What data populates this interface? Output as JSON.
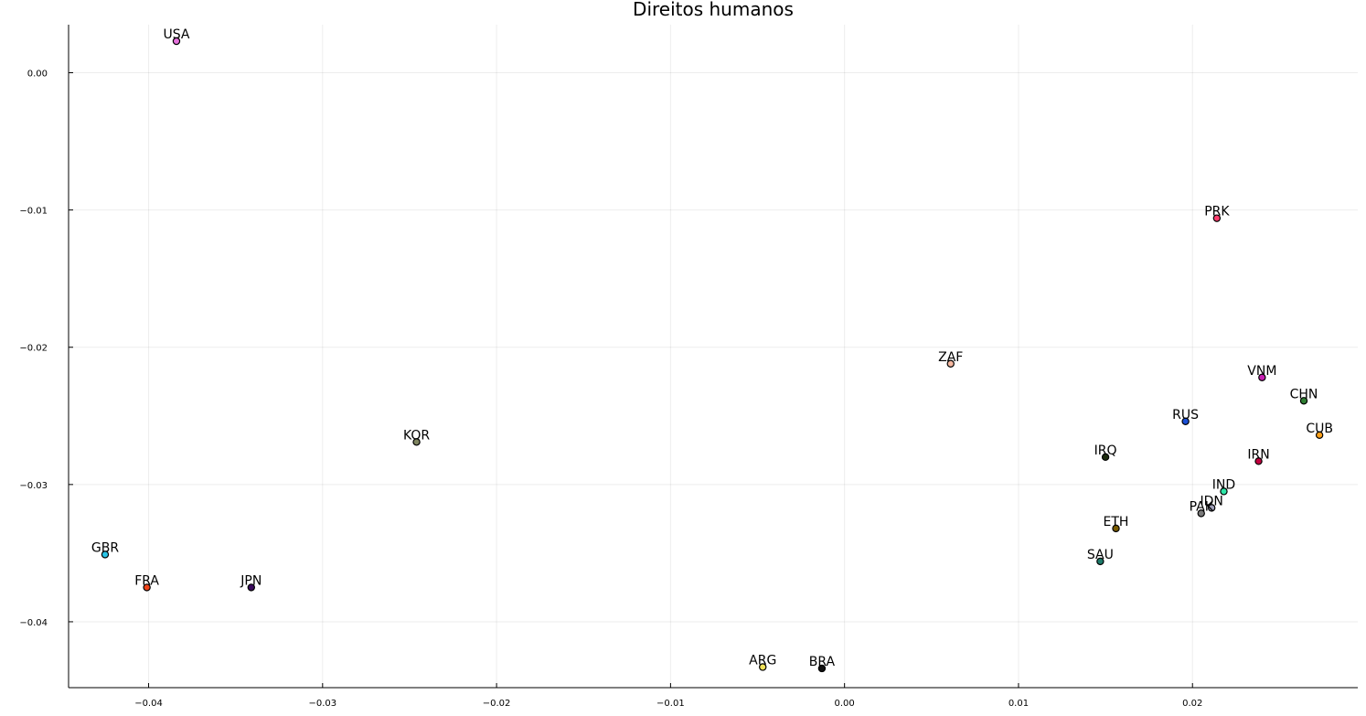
{
  "chart_data": {
    "type": "scatter",
    "title": "Direitos humanos",
    "xlabel": "",
    "ylabel": "",
    "xlim": [
      -0.0446,
      0.0295
    ],
    "ylim": [
      -0.0448,
      0.0035
    ],
    "grid": true,
    "legend": "none",
    "x_ticks": [
      {
        "value": -0.04,
        "label": "−0.04"
      },
      {
        "value": -0.03,
        "label": "−0.03"
      },
      {
        "value": -0.02,
        "label": "−0.02"
      },
      {
        "value": -0.01,
        "label": "−0.01"
      },
      {
        "value": 0.0,
        "label": "0.00"
      },
      {
        "value": 0.01,
        "label": "0.01"
      },
      {
        "value": 0.02,
        "label": "0.02"
      }
    ],
    "y_ticks": [
      {
        "value": 0.0,
        "label": "0.00"
      },
      {
        "value": -0.01,
        "label": "−0.01"
      },
      {
        "value": -0.02,
        "label": "−0.02"
      },
      {
        "value": -0.03,
        "label": "−0.03"
      },
      {
        "value": -0.04,
        "label": "−0.04"
      }
    ],
    "points": [
      {
        "label": "USA",
        "x": -0.0384,
        "y": 0.0023,
        "color": "#e572dc"
      },
      {
        "label": "PRK",
        "x": 0.0214,
        "y": -0.0106,
        "color": "#ff3d6e"
      },
      {
        "label": "ZAF",
        "x": 0.0061,
        "y": -0.0212,
        "color": "#f6b8a0"
      },
      {
        "label": "VNM",
        "x": 0.024,
        "y": -0.0222,
        "color": "#c71fb2"
      },
      {
        "label": "CHN",
        "x": 0.0264,
        "y": -0.0239,
        "color": "#2e7d32"
      },
      {
        "label": "RUS",
        "x": 0.0196,
        "y": -0.0254,
        "color": "#1a4fd6"
      },
      {
        "label": "CUB",
        "x": 0.0273,
        "y": -0.0264,
        "color": "#ffa11a"
      },
      {
        "label": "KOR",
        "x": -0.0246,
        "y": -0.0269,
        "color": "#7f8560"
      },
      {
        "label": "IRQ",
        "x": 0.015,
        "y": -0.028,
        "color": "#1c2b0e"
      },
      {
        "label": "IRN",
        "x": 0.0238,
        "y": -0.0283,
        "color": "#c2003f"
      },
      {
        "label": "IND",
        "x": 0.0218,
        "y": -0.0305,
        "color": "#2ee6a8"
      },
      {
        "label": "IDN",
        "x": 0.0211,
        "y": -0.0317,
        "color": "#9f9fb8"
      },
      {
        "label": "PAK",
        "x": 0.0205,
        "y": -0.0321,
        "color": "#7a7a7a"
      },
      {
        "label": "ETH",
        "x": 0.0156,
        "y": -0.0332,
        "color": "#7a5c00"
      },
      {
        "label": "GBR",
        "x": -0.0425,
        "y": -0.0351,
        "color": "#29c4e6"
      },
      {
        "label": "SAU",
        "x": 0.0147,
        "y": -0.0356,
        "color": "#1d7a6a"
      },
      {
        "label": "FRA",
        "x": -0.0401,
        "y": -0.0375,
        "color": "#f0441a"
      },
      {
        "label": "JPN",
        "x": -0.0341,
        "y": -0.0375,
        "color": "#3a0a5e"
      },
      {
        "label": "ARG",
        "x": -0.0047,
        "y": -0.0433,
        "color": "#f2e35a"
      },
      {
        "label": "BRA",
        "x": -0.0013,
        "y": -0.0434,
        "color": "#111111"
      }
    ]
  }
}
